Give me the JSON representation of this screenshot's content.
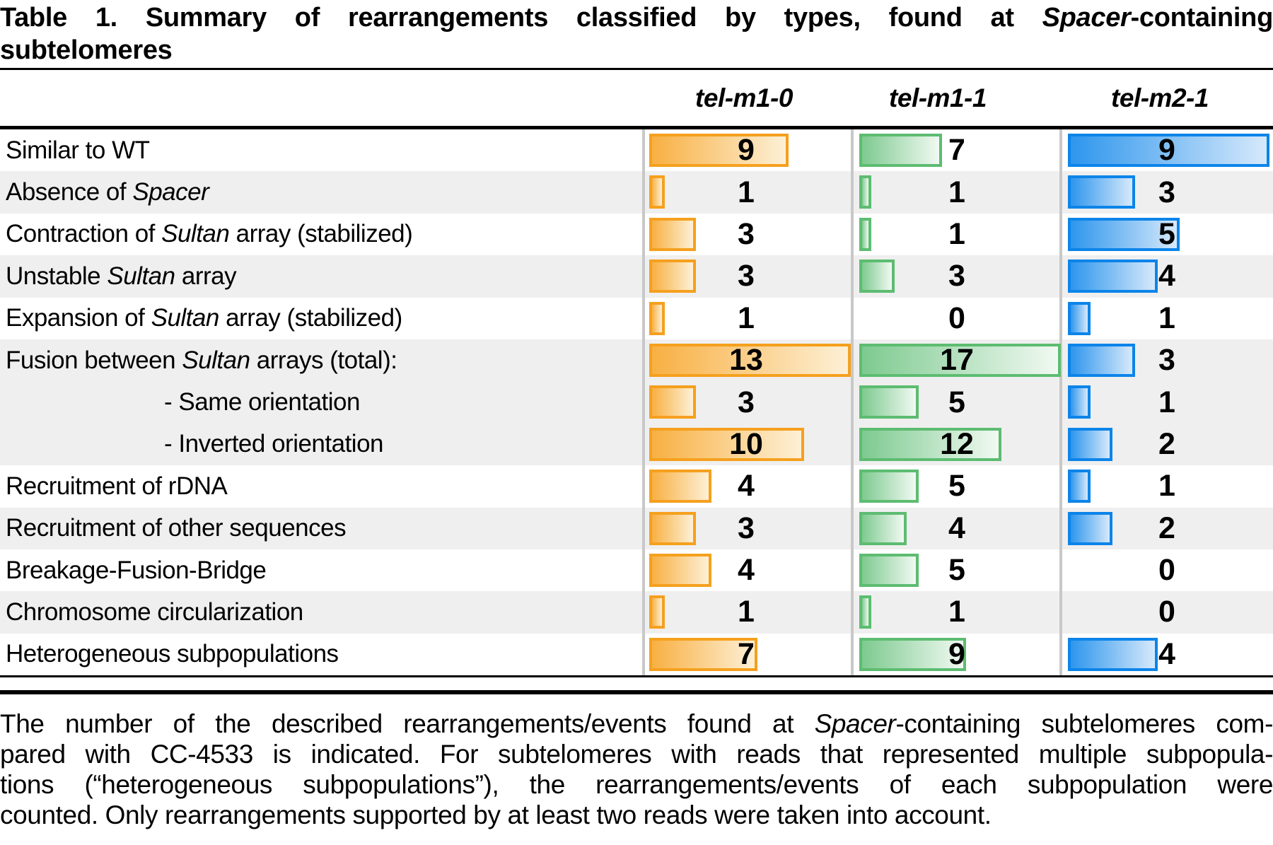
{
  "title": {
    "line1": [
      {
        "text": "Table 1.",
        "bold": true
      },
      {
        "text": " Summary of rearrangements classified by types, found at "
      },
      {
        "text": "Spacer",
        "italic": true
      },
      {
        "text": "-containing"
      }
    ],
    "line2": [
      {
        "text": "subtelomeres"
      }
    ]
  },
  "columns": [
    {
      "label": "tel-m1-0",
      "border_color": "#F5A01E",
      "fill_start": "#F8B043",
      "fill_end": "#FDF0D6"
    },
    {
      "label": "tel-m1-1",
      "border_color": "#5DBC71",
      "fill_start": "#7ECA90",
      "fill_end": "#F1F9F2"
    },
    {
      "label": "tel-m2-1",
      "border_color": "#0C84E9",
      "fill_start": "#2E96ED",
      "fill_end": "#D6E9FB"
    }
  ],
  "rows": [
    {
      "label": [
        {
          "text": "Similar to WT"
        }
      ],
      "indent": false,
      "shaded": false,
      "values": [
        9,
        7,
        9
      ]
    },
    {
      "label": [
        {
          "text": "Absence of "
        },
        {
          "text": "Spacer",
          "italic": true
        }
      ],
      "indent": false,
      "shaded": true,
      "values": [
        1,
        1,
        3
      ]
    },
    {
      "label": [
        {
          "text": "Contraction of "
        },
        {
          "text": "Sultan",
          "italic": true
        },
        {
          "text": " array (stabilized)"
        }
      ],
      "indent": false,
      "shaded": false,
      "values": [
        3,
        1,
        5
      ]
    },
    {
      "label": [
        {
          "text": "Unstable "
        },
        {
          "text": "Sultan",
          "italic": true
        },
        {
          "text": " array"
        }
      ],
      "indent": false,
      "shaded": true,
      "values": [
        3,
        3,
        4
      ]
    },
    {
      "label": [
        {
          "text": "Expansion of "
        },
        {
          "text": "Sultan",
          "italic": true
        },
        {
          "text": " array (stabilized)"
        }
      ],
      "indent": false,
      "shaded": false,
      "values": [
        1,
        0,
        1
      ]
    },
    {
      "label": [
        {
          "text": "Fusion between "
        },
        {
          "text": "Sultan",
          "italic": true
        },
        {
          "text": " arrays (total):"
        }
      ],
      "indent": false,
      "shaded": true,
      "values": [
        13,
        17,
        3
      ]
    },
    {
      "label": [
        {
          "text": "- Same orientation"
        }
      ],
      "indent": true,
      "shaded": true,
      "values": [
        3,
        5,
        1
      ]
    },
    {
      "label": [
        {
          "text": "- Inverted orientation"
        }
      ],
      "indent": true,
      "shaded": true,
      "values": [
        10,
        12,
        2
      ]
    },
    {
      "label": [
        {
          "text": "Recruitment of rDNA"
        }
      ],
      "indent": false,
      "shaded": false,
      "values": [
        4,
        5,
        1
      ]
    },
    {
      "label": [
        {
          "text": "Recruitment of other sequences"
        }
      ],
      "indent": false,
      "shaded": true,
      "values": [
        3,
        4,
        2
      ]
    },
    {
      "label": [
        {
          "text": "Breakage-Fusion-Bridge"
        }
      ],
      "indent": false,
      "shaded": false,
      "values": [
        4,
        5,
        0
      ]
    },
    {
      "label": [
        {
          "text": "Chromosome circularization"
        }
      ],
      "indent": false,
      "shaded": true,
      "values": [
        1,
        1,
        0
      ]
    },
    {
      "label": [
        {
          "text": "Heterogeneous subpopulations"
        }
      ],
      "indent": false,
      "shaded": false,
      "values": [
        7,
        9,
        4
      ]
    }
  ],
  "footnote": {
    "lines": [
      [
        {
          "text": "The number of the described rearrangements/events found at "
        },
        {
          "text": "Spacer",
          "italic": true
        },
        {
          "text": "-containing subtelomeres com-"
        }
      ],
      [
        {
          "text": "pared with CC-4533 is indicated. For subtelomeres with reads that represented multiple subpopula-"
        }
      ],
      [
        {
          "text": "tions (“heterogeneous subpopulations”), the rearrangements/events of each subpopulation were"
        }
      ],
      [
        {
          "text": "counted. Only rearrangements supported by at least two reads were taken into account."
        }
      ]
    ]
  },
  "colors": {
    "row_shade": "#EFEFEF",
    "column_divider": "#C8C8C8",
    "rule": "#000000",
    "text": "#000000"
  },
  "chart_data": {
    "type": "table",
    "title": "Table 1. Summary of rearrangements classified by types, found at Spacer-containing subtelomeres",
    "categories": [
      "Similar to WT",
      "Absence of Spacer",
      "Contraction of Sultan array (stabilized)",
      "Unstable Sultan array",
      "Expansion of Sultan array (stabilized)",
      "Fusion between Sultan arrays (total):",
      "- Same orientation",
      "- Inverted orientation",
      "Recruitment of rDNA",
      "Recruitment of other sequences",
      "Breakage-Fusion-Bridge",
      "Chromosome circularization",
      "Heterogeneous subpopulations"
    ],
    "series": [
      {
        "name": "tel-m1-0",
        "values": [
          9,
          1,
          3,
          3,
          1,
          13,
          3,
          10,
          4,
          3,
          4,
          1,
          7
        ]
      },
      {
        "name": "tel-m1-1",
        "values": [
          7,
          1,
          1,
          3,
          0,
          17,
          5,
          12,
          5,
          4,
          5,
          1,
          9
        ]
      },
      {
        "name": "tel-m2-1",
        "values": [
          9,
          3,
          5,
          4,
          1,
          3,
          1,
          2,
          1,
          2,
          0,
          0,
          4
        ]
      }
    ],
    "layout": "horizontal in-cell bars, each column normalized to its own maximum"
  }
}
